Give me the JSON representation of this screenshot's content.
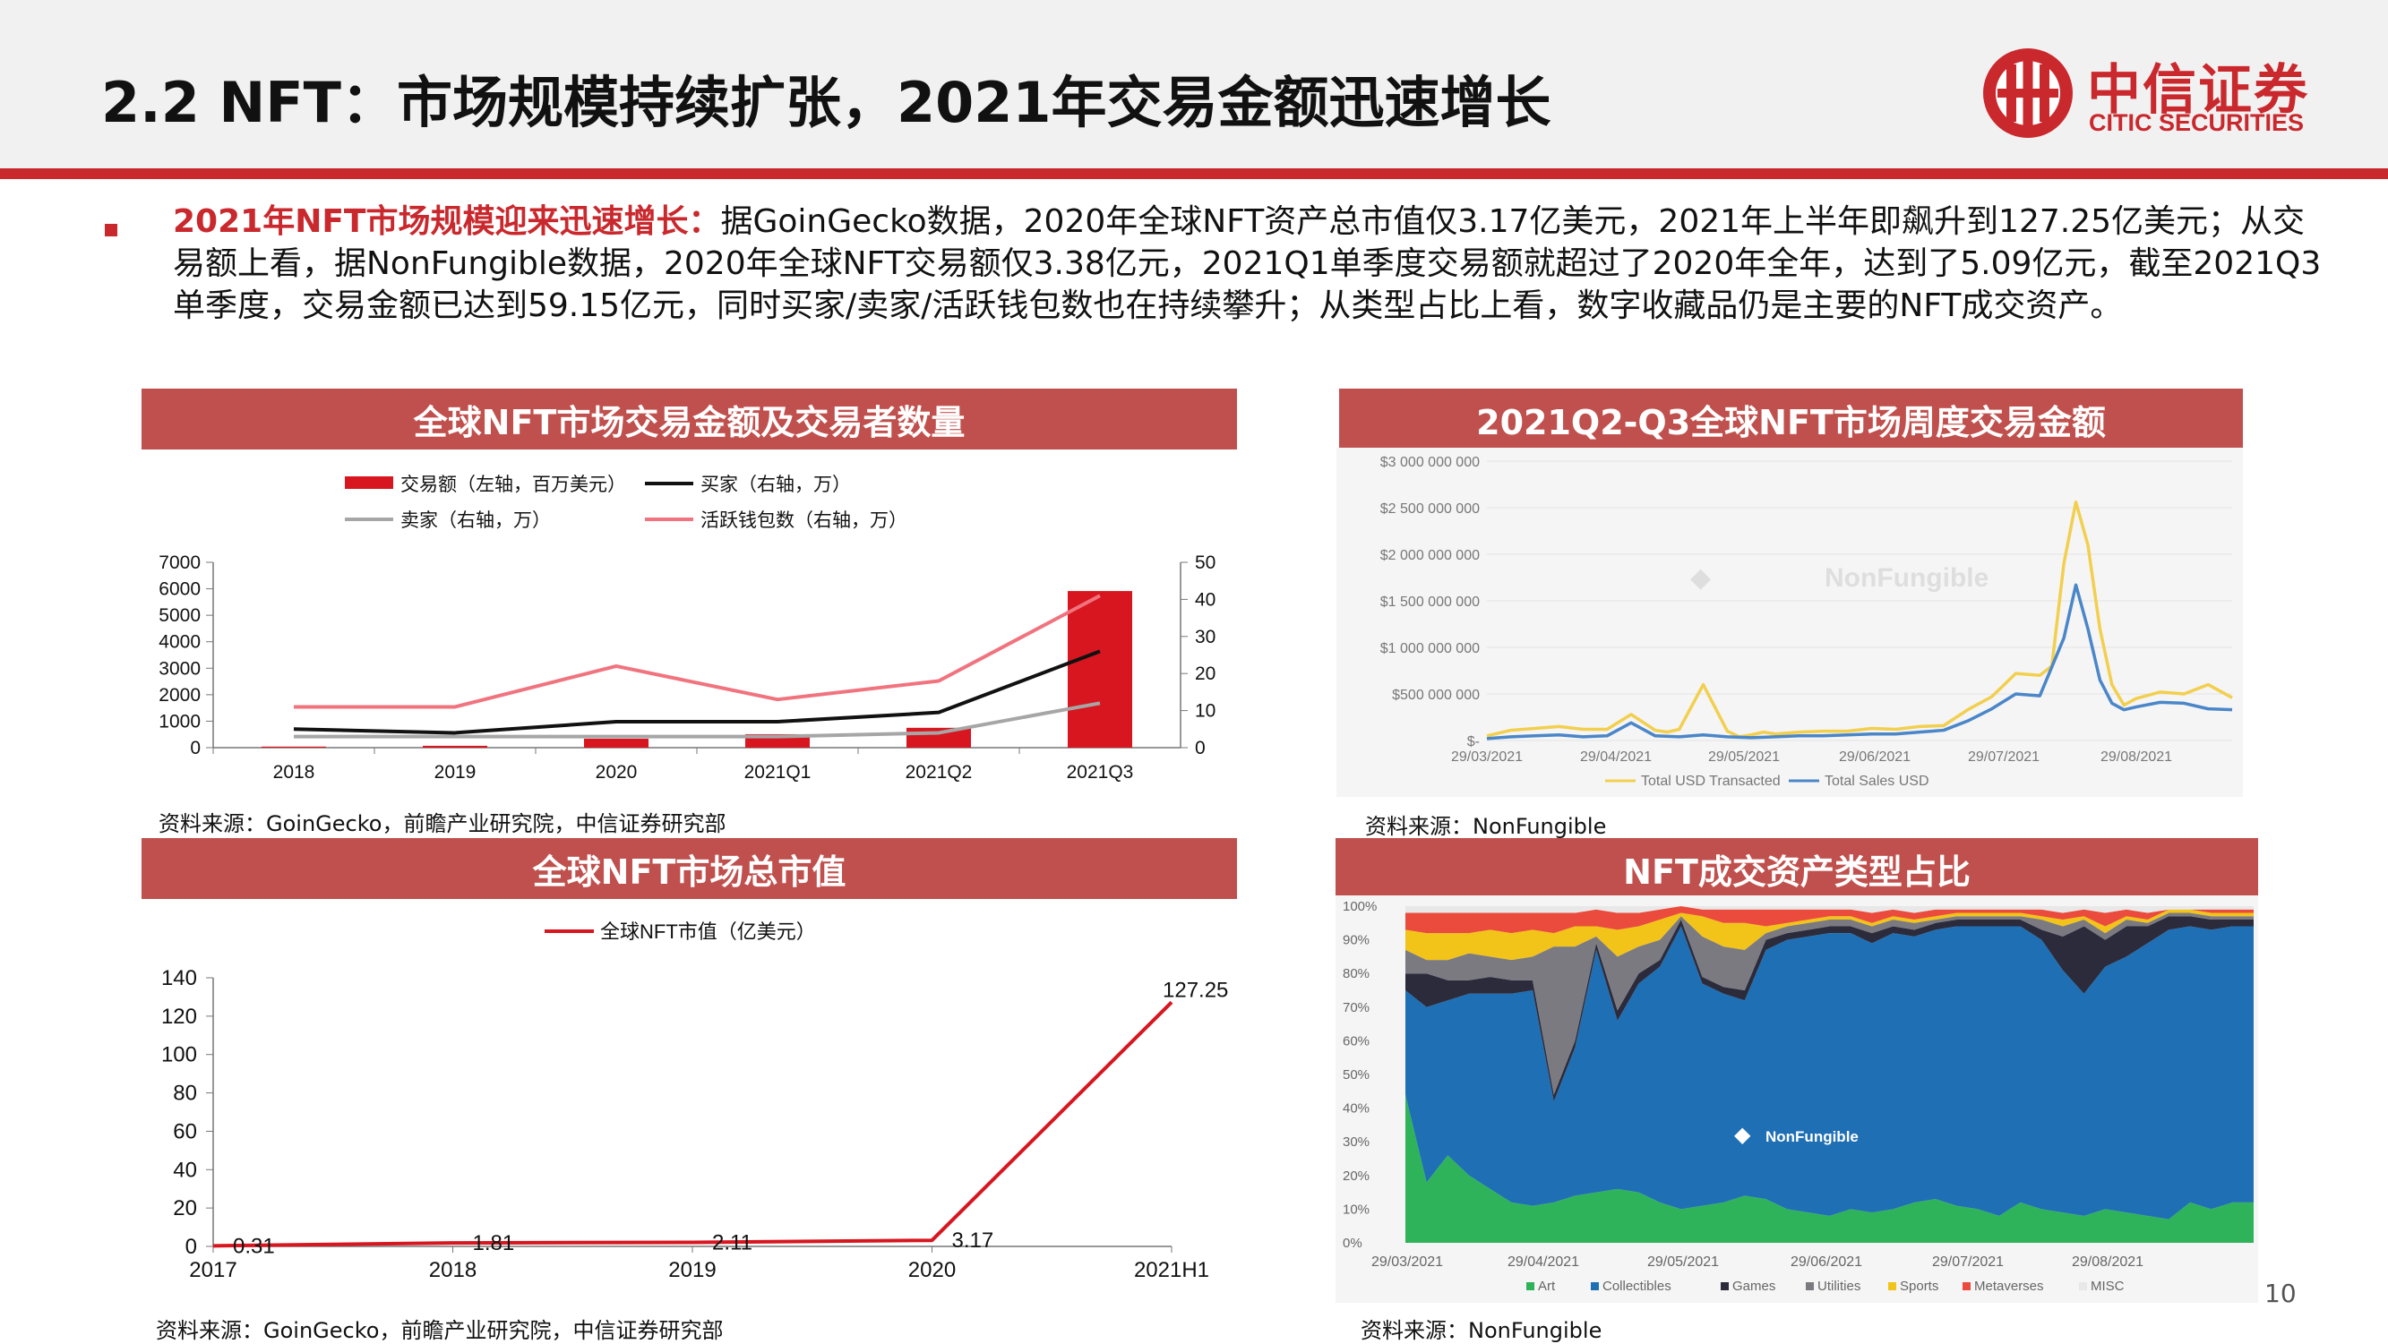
{
  "header": {
    "title": "2.2 NFT：市场规模持续扩张，2021年交易金额迅速增长",
    "logo_cn": "中信证券",
    "logo_en": "CITIC SECURITIES"
  },
  "summary": {
    "lead": "2021年NFT市场规模迎来迅速增长：",
    "body": "据GoinGecko数据，2020年全球NFT资产总市值仅3.17亿美元，2021年上半年即飙升到127.25亿美元；从交易额上看，据NonFungible数据，2020年全球NFT交易额仅3.38亿元，2021Q1单季度交易额就超过了2020年全年，达到了5.09亿元，截至2021Q3单季度，交易金额已达到59.15亿元，同时买家/卖家/活跃钱包数也在持续攀升；从类型占比上看，数字收藏品仍是主要的NFT成交资产。"
  },
  "panels": {
    "p1_title": "全球NFT市场交易金额及交易者数量",
    "p2_title": "2021Q2-Q3全球NFT市场周度交易金额",
    "p3_title": "全球NFT市场总市值",
    "p4_title": "NFT成交资产类型占比",
    "source_p1": "资料来源：GoinGecko，前瞻产业研究院，中信证券研究部",
    "source_p2": "资料来源：NonFungible",
    "source_p3": "资料来源：GoinGecko，前瞻产业研究院，中信证券研究部",
    "source_p4": "资料来源：NonFungible"
  },
  "page_number": "10",
  "chart_data": [
    {
      "type": "bar",
      "categories": [
        "2018",
        "2019",
        "2020",
        "2021Q1",
        "2021Q2",
        "2021Q3"
      ],
      "left_ylim": [
        0,
        7000
      ],
      "left_ticks": [
        "0",
        "1000",
        "2000",
        "3000",
        "4000",
        "5000",
        "6000",
        "7000"
      ],
      "right_ylim": [
        0,
        50
      ],
      "right_ticks": [
        "0",
        "10",
        "20",
        "30",
        "40",
        "50"
      ],
      "legend": [
        "交易额（左轴，百万美元）",
        "买家（右轴，万）",
        "卖家（右轴，万）",
        "活跃钱包数（右轴，万）"
      ],
      "bars": {
        "name": "交易额（左轴，百万美元）",
        "values": [
          40,
          70,
          338,
          509,
          750,
          5915
        ],
        "color": "#d7161f"
      },
      "series": [
        {
          "name": "买家（右轴，万）",
          "values": [
            5,
            4,
            7,
            7,
            9.5,
            26
          ],
          "color": "#111111"
        },
        {
          "name": "卖家（右轴，万）",
          "values": [
            3,
            3,
            3,
            3,
            4,
            12
          ],
          "color": "#a6a6a6"
        },
        {
          "name": "活跃钱包数（右轴，万）",
          "values": [
            11,
            11,
            22,
            13,
            18,
            41
          ],
          "color": "#f0737e"
        }
      ]
    },
    {
      "type": "line",
      "x_ticks": [
        "29/03/2021",
        "29/04/2021",
        "29/05/2021",
        "29/06/2021",
        "29/07/2021",
        "29/08/2021"
      ],
      "y_ticks": [
        "$-",
        "$500 000 000",
        "$1 000 000 000",
        "$1 500 000 000",
        "$2 000 000 000",
        "$2 500 000 000",
        "$3 000 000 000"
      ],
      "ylim": [
        0,
        3000000000
      ],
      "watermark": "NonFungible",
      "legend": [
        "Total USD Transacted",
        "Total Sales USD"
      ],
      "series": [
        {
          "name": "Total USD Transacted",
          "color": "#f2cf4e",
          "x": [
            0,
            2,
            4,
            6,
            8,
            10,
            12,
            14,
            15,
            16,
            18,
            20,
            21,
            22,
            23,
            24,
            26,
            28,
            30,
            32,
            34,
            36,
            38,
            40,
            42,
            44,
            46,
            47,
            48,
            49,
            50,
            51,
            52,
            53,
            54,
            56,
            58,
            60,
            62
          ],
          "values": [
            50,
            110,
            130,
            150,
            120,
            120,
            280,
            110,
            90,
            120,
            600,
            100,
            40,
            60,
            90,
            70,
            90,
            100,
            100,
            130,
            120,
            150,
            160,
            330,
            470,
            720,
            700,
            800,
            1900,
            2560,
            2100,
            1200,
            600,
            380,
            450,
            520,
            500,
            600,
            460
          ]
        },
        {
          "name": "Total Sales USD",
          "color": "#4a86c8",
          "x": [
            0,
            2,
            4,
            6,
            8,
            10,
            12,
            14,
            16,
            18,
            20,
            22,
            24,
            26,
            28,
            30,
            32,
            34,
            36,
            38,
            40,
            42,
            44,
            46,
            48,
            49,
            50,
            51,
            52,
            53,
            54,
            56,
            58,
            60,
            62
          ],
          "values": [
            20,
            40,
            50,
            60,
            40,
            50,
            190,
            50,
            40,
            60,
            40,
            30,
            40,
            50,
            50,
            60,
            70,
            70,
            90,
            110,
            210,
            340,
            500,
            480,
            1100,
            1670,
            1200,
            650,
            400,
            330,
            360,
            410,
            400,
            340,
            330
          ]
        }
      ]
    },
    {
      "type": "line",
      "categories": [
        "2017",
        "2018",
        "2019",
        "2020",
        "2021H1"
      ],
      "legend": [
        "全球NFT市值（亿美元）"
      ],
      "ylim": [
        0,
        140
      ],
      "y_ticks": [
        "0",
        "20",
        "40",
        "60",
        "80",
        "100",
        "120",
        "140"
      ],
      "series": [
        {
          "name": "全球NFT市值（亿美元）",
          "values": [
            0.31,
            1.81,
            2.11,
            3.17,
            127.25
          ],
          "labels": [
            "0.31",
            "1.81",
            "2.11",
            "3.17",
            "127.25"
          ],
          "color": "#d7161f"
        }
      ]
    },
    {
      "type": "area",
      "x_ticks": [
        "29/03/2021",
        "29/04/2021",
        "29/05/2021",
        "29/06/2021",
        "29/07/2021",
        "29/08/2021"
      ],
      "y_ticks": [
        "0%",
        "10%",
        "20%",
        "30%",
        "40%",
        "50%",
        "60%",
        "70%",
        "80%",
        "90%",
        "100%"
      ],
      "watermark": "NonFungible",
      "legend": [
        "Art",
        "Collectibles",
        "Games",
        "Utilities",
        "Sports",
        "Metaverses",
        "MISC"
      ],
      "colors": [
        "#2fb35a",
        "#1f6fb4",
        "#2b2b3c",
        "#7a7a80",
        "#f2c318",
        "#ea4b3c",
        "#e8e8e8"
      ],
      "x": [
        0,
        6,
        12,
        18,
        24,
        30,
        36,
        42,
        48,
        54,
        60,
        66,
        72,
        78,
        84,
        90,
        96,
        102,
        108,
        114,
        120,
        126,
        132,
        138,
        144,
        150,
        156,
        162,
        168,
        174,
        180,
        186,
        192,
        198,
        204,
        210,
        216,
        222,
        228,
        234,
        240
      ],
      "series": [
        {
          "name": "Art",
          "values": [
            44,
            18,
            26,
            20,
            16,
            12,
            11,
            12,
            14,
            15,
            16,
            15,
            12,
            10,
            11,
            12,
            14,
            13,
            10,
            9,
            8,
            10,
            9,
            10,
            12,
            13,
            11,
            10,
            8,
            12,
            10,
            9,
            8,
            10,
            9,
            8,
            7,
            12,
            10,
            12,
            12
          ]
        },
        {
          "name": "Collectibles",
          "values": [
            31,
            52,
            46,
            54,
            58,
            62,
            64,
            30,
            44,
            72,
            50,
            62,
            70,
            84,
            66,
            62,
            58,
            74,
            80,
            82,
            84,
            82,
            80,
            82,
            79,
            80,
            83,
            84,
            86,
            82,
            80,
            72,
            66,
            72,
            76,
            81,
            86,
            82,
            83,
            82,
            82
          ]
        },
        {
          "name": "Games",
          "values": [
            5,
            10,
            6,
            4,
            5,
            4,
            3,
            2,
            2,
            2,
            3,
            3,
            2,
            2,
            2,
            2,
            3,
            3,
            2,
            2,
            2,
            2,
            3,
            2,
            2,
            2,
            2,
            2,
            2,
            2,
            3,
            10,
            20,
            8,
            9,
            5,
            4,
            3,
            3,
            2,
            2
          ]
        },
        {
          "name": "Utilities",
          "values": [
            7,
            4,
            6,
            8,
            6,
            6,
            7,
            44,
            28,
            2,
            16,
            8,
            6,
            1,
            12,
            12,
            12,
            2,
            2,
            2,
            2,
            2,
            2,
            2,
            2,
            1,
            1,
            1,
            1,
            1,
            3,
            3,
            2,
            2,
            2,
            1,
            1,
            1,
            1,
            1,
            1
          ]
        },
        {
          "name": "Sports",
          "values": [
            6,
            8,
            8,
            6,
            8,
            8,
            8,
            4,
            6,
            3,
            8,
            6,
            6,
            1,
            6,
            7,
            8,
            2,
            1,
            1,
            1,
            1,
            1,
            1,
            1,
            1,
            1,
            1,
            1,
            1,
            1,
            2,
            1,
            2,
            1,
            1,
            1,
            1,
            1,
            1,
            1
          ]
        },
        {
          "name": "Metaverses",
          "values": [
            5,
            6,
            6,
            6,
            5,
            6,
            5,
            6,
            4,
            5,
            5,
            4,
            3,
            2,
            2,
            4,
            4,
            5,
            4,
            3,
            2,
            2,
            3,
            2,
            2,
            2,
            1,
            1,
            1,
            1,
            2,
            2,
            2,
            4,
            2,
            2,
            0,
            0,
            1,
            1,
            1
          ]
        },
        {
          "name": "MISC",
          "values": [
            2,
            2,
            2,
            2,
            2,
            2,
            2,
            2,
            2,
            1,
            2,
            2,
            1,
            0,
            1,
            1,
            1,
            1,
            1,
            1,
            1,
            1,
            2,
            1,
            2,
            1,
            1,
            1,
            1,
            1,
            1,
            2,
            1,
            2,
            1,
            2,
            1,
            1,
            1,
            1,
            1
          ]
        }
      ]
    }
  ]
}
